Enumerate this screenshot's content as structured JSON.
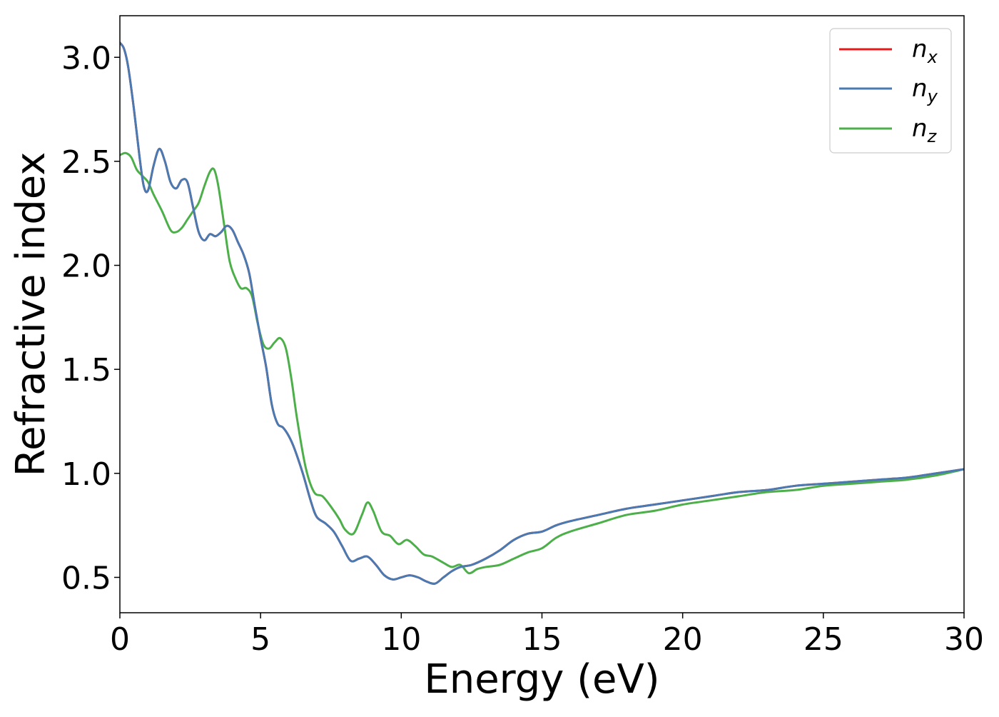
{
  "chart_data": {
    "type": "line",
    "title": "",
    "xlabel": "Energy (eV)",
    "ylabel": "Refractive index",
    "xlim": [
      0,
      30
    ],
    "ylim": [
      0.33,
      3.2
    ],
    "xticks": [
      0,
      5,
      10,
      15,
      20,
      25,
      30
    ],
    "xtick_labels": [
      "0",
      "5",
      "10",
      "15",
      "20",
      "25",
      "30"
    ],
    "yticks": [
      0.5,
      1.0,
      1.5,
      2.0,
      2.5,
      3.0
    ],
    "ytick_labels": [
      "0.5",
      "1.0",
      "1.5",
      "2.0",
      "2.5",
      "3.0"
    ],
    "grid": false,
    "legend_position": "top-right",
    "series": [
      {
        "name": "n_x",
        "legend_base": "n",
        "legend_sub": "x",
        "color": "#e41a1c",
        "x": [
          0,
          0.15,
          0.3,
          0.5,
          0.7,
          0.85,
          1.0,
          1.2,
          1.4,
          1.6,
          1.8,
          2.0,
          2.2,
          2.4,
          2.6,
          2.8,
          3.0,
          3.2,
          3.4,
          3.6,
          3.8,
          4.0,
          4.2,
          4.4,
          4.6,
          4.8,
          5.0,
          5.2,
          5.4,
          5.6,
          5.8,
          6.0,
          6.2,
          6.5,
          6.8,
          7.0,
          7.3,
          7.6,
          7.9,
          8.2,
          8.5,
          8.8,
          9.1,
          9.4,
          9.7,
          10.0,
          10.3,
          10.6,
          10.9,
          11.2,
          11.5,
          11.8,
          12.1,
          12.5,
          13.0,
          13.5,
          14.0,
          14.5,
          15.0,
          15.5,
          16.0,
          17.0,
          18.0,
          19.0,
          20.0,
          21.0,
          22.0,
          23.0,
          24.0,
          25.0,
          26.0,
          27.0,
          28.0,
          29.0,
          30.0
        ],
        "y": [
          3.07,
          3.04,
          2.95,
          2.75,
          2.52,
          2.38,
          2.36,
          2.48,
          2.56,
          2.5,
          2.4,
          2.37,
          2.41,
          2.4,
          2.28,
          2.16,
          2.12,
          2.15,
          2.14,
          2.16,
          2.19,
          2.17,
          2.11,
          2.05,
          1.96,
          1.8,
          1.65,
          1.51,
          1.33,
          1.24,
          1.22,
          1.18,
          1.12,
          1.0,
          0.86,
          0.79,
          0.76,
          0.72,
          0.65,
          0.58,
          0.59,
          0.6,
          0.56,
          0.51,
          0.49,
          0.5,
          0.51,
          0.5,
          0.48,
          0.47,
          0.5,
          0.53,
          0.55,
          0.56,
          0.59,
          0.63,
          0.68,
          0.71,
          0.72,
          0.75,
          0.77,
          0.8,
          0.83,
          0.85,
          0.87,
          0.89,
          0.91,
          0.92,
          0.94,
          0.95,
          0.96,
          0.97,
          0.98,
          1.0,
          1.02
        ]
      },
      {
        "name": "n_y",
        "legend_base": "n",
        "legend_sub": "y",
        "color": "#4a7ab2",
        "x": [
          0,
          0.15,
          0.3,
          0.5,
          0.7,
          0.85,
          1.0,
          1.2,
          1.4,
          1.6,
          1.8,
          2.0,
          2.2,
          2.4,
          2.6,
          2.8,
          3.0,
          3.2,
          3.4,
          3.6,
          3.8,
          4.0,
          4.2,
          4.4,
          4.6,
          4.8,
          5.0,
          5.2,
          5.4,
          5.6,
          5.8,
          6.0,
          6.2,
          6.5,
          6.8,
          7.0,
          7.3,
          7.6,
          7.9,
          8.2,
          8.5,
          8.8,
          9.1,
          9.4,
          9.7,
          10.0,
          10.3,
          10.6,
          10.9,
          11.2,
          11.5,
          11.8,
          12.1,
          12.5,
          13.0,
          13.5,
          14.0,
          14.5,
          15.0,
          15.5,
          16.0,
          17.0,
          18.0,
          19.0,
          20.0,
          21.0,
          22.0,
          23.0,
          24.0,
          25.0,
          26.0,
          27.0,
          28.0,
          29.0,
          30.0
        ],
        "y": [
          3.07,
          3.04,
          2.95,
          2.75,
          2.52,
          2.38,
          2.36,
          2.48,
          2.56,
          2.5,
          2.4,
          2.37,
          2.41,
          2.4,
          2.28,
          2.16,
          2.12,
          2.15,
          2.14,
          2.16,
          2.19,
          2.17,
          2.11,
          2.05,
          1.96,
          1.8,
          1.65,
          1.51,
          1.33,
          1.24,
          1.22,
          1.18,
          1.12,
          1.0,
          0.86,
          0.79,
          0.76,
          0.72,
          0.65,
          0.58,
          0.59,
          0.6,
          0.56,
          0.51,
          0.49,
          0.5,
          0.51,
          0.5,
          0.48,
          0.47,
          0.5,
          0.53,
          0.55,
          0.56,
          0.59,
          0.63,
          0.68,
          0.71,
          0.72,
          0.75,
          0.77,
          0.8,
          0.83,
          0.85,
          0.87,
          0.89,
          0.91,
          0.92,
          0.94,
          0.95,
          0.96,
          0.97,
          0.98,
          1.0,
          1.02
        ]
      },
      {
        "name": "n_z",
        "legend_base": "n",
        "legend_sub": "z",
        "color": "#4daf4a",
        "x": [
          0,
          0.2,
          0.4,
          0.6,
          0.8,
          1.0,
          1.2,
          1.5,
          1.8,
          2.0,
          2.2,
          2.4,
          2.6,
          2.8,
          3.0,
          3.2,
          3.35,
          3.5,
          3.7,
          3.9,
          4.1,
          4.3,
          4.5,
          4.7,
          4.9,
          5.1,
          5.3,
          5.5,
          5.7,
          5.9,
          6.1,
          6.3,
          6.6,
          6.9,
          7.2,
          7.5,
          7.8,
          8.0,
          8.3,
          8.6,
          8.8,
          9.0,
          9.3,
          9.6,
          9.9,
          10.2,
          10.5,
          10.8,
          11.1,
          11.5,
          11.8,
          12.1,
          12.4,
          12.7,
          13.0,
          13.5,
          14.0,
          14.5,
          15.0,
          15.5,
          16.0,
          17.0,
          18.0,
          19.0,
          20.0,
          21.0,
          22.0,
          23.0,
          24.0,
          25.0,
          26.0,
          27.0,
          28.0,
          29.0,
          30.0
        ],
        "y": [
          2.53,
          2.54,
          2.52,
          2.46,
          2.43,
          2.4,
          2.34,
          2.26,
          2.17,
          2.16,
          2.18,
          2.22,
          2.26,
          2.3,
          2.38,
          2.45,
          2.46,
          2.38,
          2.2,
          2.02,
          1.94,
          1.89,
          1.89,
          1.85,
          1.72,
          1.62,
          1.6,
          1.63,
          1.65,
          1.6,
          1.45,
          1.26,
          1.03,
          0.91,
          0.89,
          0.84,
          0.78,
          0.73,
          0.71,
          0.8,
          0.86,
          0.82,
          0.72,
          0.7,
          0.66,
          0.68,
          0.65,
          0.61,
          0.6,
          0.57,
          0.55,
          0.56,
          0.52,
          0.54,
          0.55,
          0.56,
          0.59,
          0.62,
          0.64,
          0.69,
          0.72,
          0.76,
          0.8,
          0.82,
          0.85,
          0.87,
          0.89,
          0.91,
          0.92,
          0.94,
          0.95,
          0.96,
          0.97,
          0.99,
          1.02
        ]
      }
    ]
  }
}
